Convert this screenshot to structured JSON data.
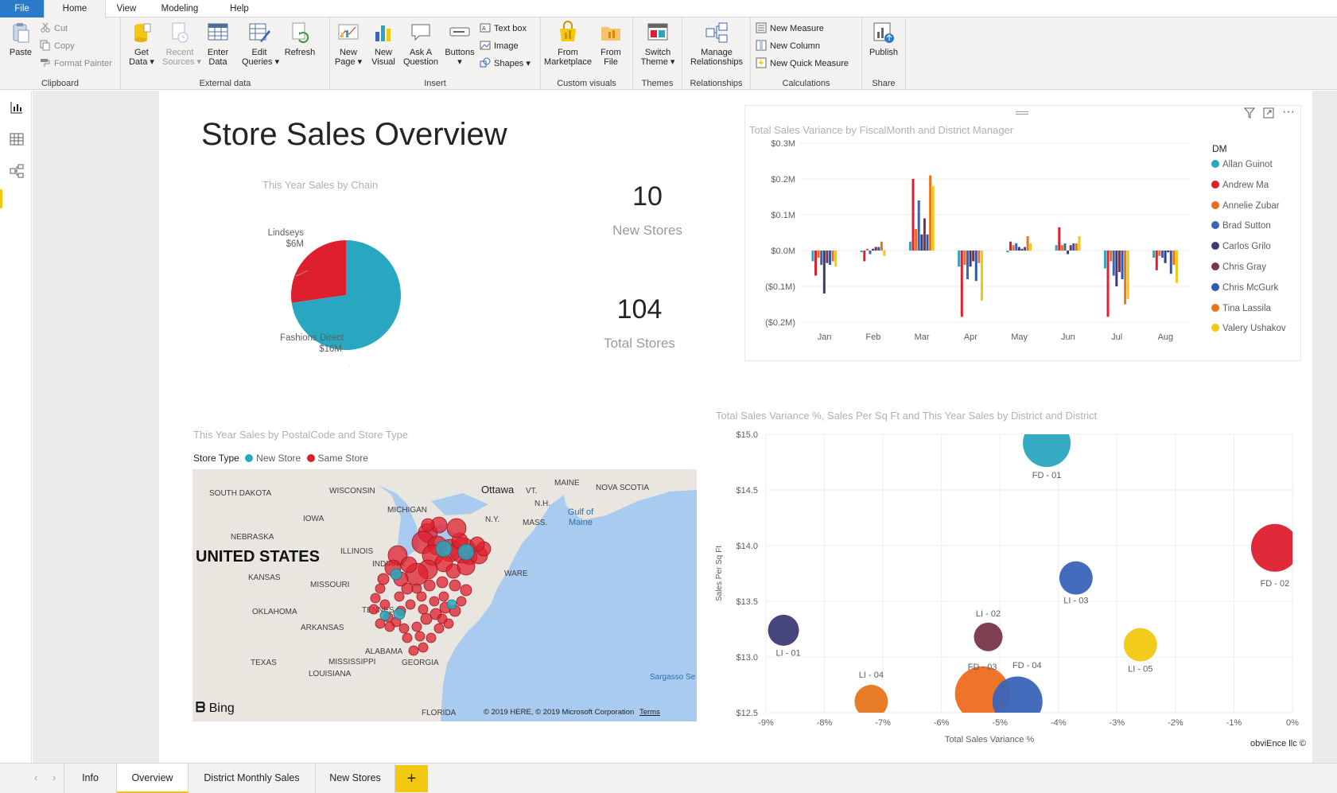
{
  "ribbon_tabs": [
    "File",
    "Home",
    "View",
    "Modeling",
    "Help"
  ],
  "ribbon": {
    "clipboard": {
      "label": "Clipboard",
      "paste": "Paste",
      "cut": "Cut",
      "copy": "Copy",
      "format_painter": "Format Painter"
    },
    "external": {
      "label": "External data",
      "get_data": "Get\nData ▾",
      "recent_sources": "Recent\nSources ▾",
      "enter_data": "Enter\nData",
      "edit_queries": "Edit\nQueries ▾",
      "refresh": "Refresh"
    },
    "insert": {
      "label": "Insert",
      "new_page": "New\nPage ▾",
      "new_visual": "New\nVisual",
      "ask_question": "Ask A\nQuestion",
      "buttons": "Buttons\n▾",
      "text_box": "Text box",
      "image": "Image",
      "shapes": "Shapes ▾"
    },
    "custom_visuals": {
      "label": "Custom visuals",
      "from_marketplace": "From\nMarketplace",
      "from_file": "From\nFile"
    },
    "themes": {
      "label": "Themes",
      "switch_theme": "Switch\nTheme ▾"
    },
    "relationships": {
      "label": "Relationships",
      "manage": "Manage\nRelationships"
    },
    "calculations": {
      "label": "Calculations",
      "new_measure": "New Measure",
      "new_column": "New Column",
      "new_quick_measure": "New Quick Measure"
    },
    "share": {
      "label": "Share",
      "publish": "Publish"
    }
  },
  "icons": {
    "nav": [
      "report-view-icon",
      "data-view-icon",
      "model-view-icon"
    ],
    "visual_header": [
      "filter-icon",
      "focus-mode-icon",
      "more-options-icon"
    ]
  },
  "colors": {
    "accent_yellow": "#F2C811",
    "file_tab_blue": "#2B79C9",
    "teal": "#2AA7C0",
    "red": "#DF1F2E",
    "orange": "#EE6C1E",
    "blue": "#3A64B8",
    "dark_navy": "#3B3D75",
    "maroon": "#7A3648",
    "mid_blue": "#2F58B4",
    "tina_orange": "#E8751A",
    "yellow": "#F2C811"
  },
  "page": {
    "title": "Store Sales Overview",
    "kpis": [
      {
        "value": "10",
        "label": "New Stores"
      },
      {
        "value": "104",
        "label": "Total Stores"
      }
    ]
  },
  "pie": {
    "title": "This Year Sales by Chain",
    "slices": [
      {
        "name": "Lindseys",
        "label": "$6M",
        "value": 6,
        "color": "#DF1F2E"
      },
      {
        "name": "Fashions Direct",
        "label": "$16M",
        "value": 16,
        "color": "#2AA7C0"
      }
    ]
  },
  "chart_data": [
    {
      "type": "bar",
      "title": "Total Sales Variance by FiscalMonth and District Manager",
      "categories": [
        "Jan",
        "Feb",
        "Mar",
        "Apr",
        "May",
        "Jun",
        "Jul",
        "Aug"
      ],
      "y_ticks": [
        "$0.3M",
        "$0.2M",
        "$0.1M",
        "$0.0M",
        "($0.1M)",
        "($0.2M)"
      ],
      "ylim": [
        -0.22,
        0.3
      ],
      "legend_title": "DM",
      "legend_position": "right",
      "series": [
        {
          "name": "Allan Guinot",
          "color": "#2AA7C0",
          "values": [
            -0.03,
            -0.005,
            0.025,
            -0.045,
            -0.005,
            0.015,
            -0.05,
            -0.02
          ]
        },
        {
          "name": "Andrew Ma",
          "color": "#DF1F2E",
          "values": [
            -0.07,
            -0.03,
            0.2,
            -0.185,
            0.025,
            0.065,
            -0.185,
            -0.055
          ]
        },
        {
          "name": "Annelie Zubar",
          "color": "#EE6C1E",
          "values": [
            -0.02,
            0.005,
            0.06,
            -0.04,
            0.015,
            0.015,
            -0.03,
            -0.015
          ]
        },
        {
          "name": "Brad Sutton",
          "color": "#3A64B8",
          "values": [
            -0.04,
            -0.01,
            0.14,
            -0.08,
            0.02,
            0.02,
            -0.07,
            -0.02
          ]
        },
        {
          "name": "Carlos Grilo",
          "color": "#3B3D75",
          "values": [
            -0.12,
            0.005,
            0.045,
            -0.045,
            0.01,
            -0.01,
            -0.1,
            -0.035
          ]
        },
        {
          "name": "Chris Gray",
          "color": "#7A3648",
          "values": [
            -0.035,
            0.01,
            0.09,
            -0.03,
            0.005,
            0.015,
            -0.06,
            -0.005
          ]
        },
        {
          "name": "Chris McGurk",
          "color": "#2F58B4",
          "values": [
            -0.04,
            0.01,
            0.045,
            -0.085,
            0.01,
            0.02,
            -0.08,
            -0.065
          ]
        },
        {
          "name": "Tina Lassila",
          "color": "#E8751A",
          "values": [
            -0.03,
            0.025,
            0.21,
            -0.035,
            0.04,
            0.02,
            -0.15,
            -0.04
          ]
        },
        {
          "name": "Valery Ushakov",
          "color": "#F2C811",
          "values": [
            -0.045,
            -0.015,
            0.18,
            -0.14,
            0.02,
            0.04,
            -0.135,
            -0.09
          ]
        }
      ]
    },
    {
      "type": "scatter",
      "title": "Total Sales Variance %, Sales Per Sq Ft and This Year Sales by District and District",
      "xlabel": "Total Sales Variance %",
      "ylabel": "Sales Per Sq Ft",
      "x_ticks": [
        "-9%",
        "-8%",
        "-7%",
        "-6%",
        "-5%",
        "-4%",
        "-3%",
        "-2%",
        "-1%",
        "0%"
      ],
      "y_ticks": [
        "$15.0",
        "$14.5",
        "$14.0",
        "$13.5",
        "$13.0",
        "$12.5"
      ],
      "xlim": [
        -9,
        0
      ],
      "ylim": [
        12.5,
        15.0
      ],
      "points": [
        {
          "label": "FD - 01",
          "x": -4.2,
          "y": 14.92,
          "size": 1.0,
          "color": "#2AA7C0"
        },
        {
          "label": "FD - 02",
          "x": -0.3,
          "y": 13.98,
          "size": 1.0,
          "color": "#DF1F2E"
        },
        {
          "label": "LI - 03",
          "x": -3.7,
          "y": 13.71,
          "size": 0.7,
          "color": "#3A64B8"
        },
        {
          "label": "LI - 01",
          "x": -8.7,
          "y": 13.24,
          "size": 0.65,
          "color": "#3B3D75"
        },
        {
          "label": "LI - 02",
          "x": -5.2,
          "y": 13.18,
          "size": 0.6,
          "color": "#7A3648"
        },
        {
          "label": "LI - 05",
          "x": -2.6,
          "y": 13.11,
          "size": 0.7,
          "color": "#F2C811"
        },
        {
          "label": "LI - 04",
          "x": -7.2,
          "y": 12.6,
          "size": 0.7,
          "color": "#E8751A"
        },
        {
          "label": "FD - 03",
          "x": -5.3,
          "y": 12.67,
          "size": 1.15,
          "color": "#EE6C1E"
        },
        {
          "label": "FD - 04",
          "x": -4.7,
          "y": 12.6,
          "size": 1.05,
          "color": "#3A64B8"
        }
      ]
    }
  ],
  "scatter_footer": "obviEnce llc ©",
  "map": {
    "title": "This Year Sales by PostalCode and Store Type",
    "legend_label": "Store Type",
    "legend_items": [
      {
        "name": "New Store",
        "color": "#2AA7C0"
      },
      {
        "name": "Same Store",
        "color": "#DF1F2E"
      }
    ],
    "country_label": "UNITED STATES",
    "labels": [
      "SOUTH DAKOTA",
      "WISCONSIN",
      "Ottawa",
      "VT.",
      "MAINE",
      "NOVA SCOTIA",
      "N.H.",
      "MICHIGAN",
      "IOWA",
      "N.Y.",
      "MASS.",
      "Gulf of Maine",
      "NEBRASKA",
      "ILLINOIS",
      "INDIANA",
      "KANSAS",
      "MISSOURI",
      "WARE",
      "OKLAHOMA",
      "TENNES",
      "ARKANSAS",
      "TEXAS",
      "ALABAMA",
      "MISSISSIPPI",
      "GEORGIA",
      "LOUISIANA",
      "Sargasso Se",
      "FLORIDA"
    ],
    "attribution": "© 2019 HERE, © 2019 Microsoft Corporation",
    "terms": "Terms",
    "brand": "Bing"
  },
  "page_tabs": [
    "Info",
    "Overview",
    "District Monthly Sales",
    "New Stores"
  ],
  "add_page": "+"
}
